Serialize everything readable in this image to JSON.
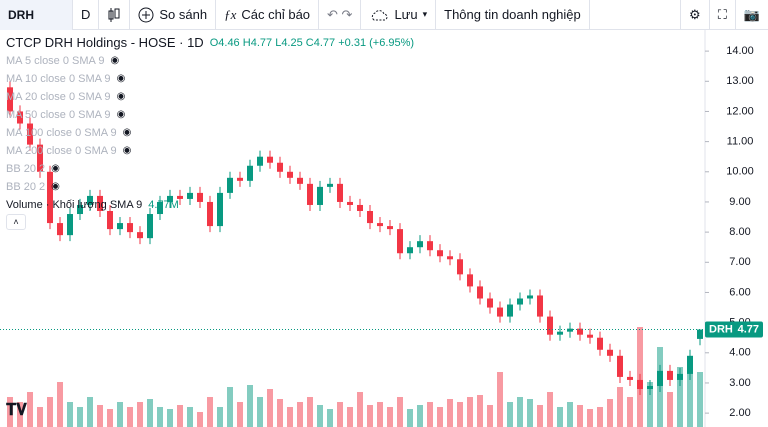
{
  "toolbar": {
    "symbol": "DRH",
    "interval": "D",
    "compare": "So sánh",
    "indicators": "Các chỉ báo",
    "save": "Lưu",
    "company": "Thông tin doanh nghiệp"
  },
  "legend": {
    "title": "CTCP DRH Holdings - HOSE · 1D",
    "o": "O",
    "h": "H",
    "l": "L",
    "c": "C",
    "change": "+0.31 (+6.95%)",
    "studies": [
      "MA 5 close 0 SMA 9",
      "MA 10 close 0 SMA 9",
      "MA 20 close 0 SMA 9",
      "MA 50 close 0 SMA 9",
      "MA 100 close 0 SMA 9",
      "MA 200 close 0 SMA 9",
      "BB 20 2",
      "BB 20 2"
    ],
    "volume": "Volume · Khối lượng SMA 9",
    "volume_value": "4.77M"
  },
  "chart_data": {
    "type": "candlestick",
    "ticker": "DRH",
    "up_color": "#089981",
    "down_color": "#f23645",
    "open": [
      12.8,
      12.0,
      11.6,
      10.9,
      10.0,
      8.3,
      7.9,
      8.6,
      8.9,
      9.2,
      8.7,
      8.1,
      8.3,
      8.0,
      7.8,
      8.6,
      9.0,
      9.2,
      9.1,
      9.3,
      9.0,
      8.2,
      9.3,
      9.8,
      9.7,
      10.2,
      10.5,
      10.3,
      10.0,
      9.8,
      9.6,
      8.9,
      9.5,
      9.6,
      9.0,
      8.9,
      8.7,
      8.3,
      8.2,
      8.1,
      7.3,
      7.5,
      7.7,
      7.4,
      7.2,
      7.1,
      6.6,
      6.2,
      5.8,
      5.5,
      5.2,
      5.6,
      5.8,
      5.9,
      5.2,
      4.6,
      4.7,
      4.8,
      4.6,
      4.5,
      4.1,
      3.9,
      3.2,
      3.1,
      2.8,
      2.9,
      3.4,
      3.1,
      3.3,
      4.46
    ],
    "high": [
      13.0,
      12.2,
      11.8,
      11.1,
      10.2,
      8.5,
      8.8,
      9.1,
      9.4,
      9.4,
      8.9,
      8.5,
      8.5,
      8.2,
      8.8,
      9.2,
      9.4,
      9.4,
      9.5,
      9.5,
      9.2,
      9.5,
      10.0,
      10.0,
      10.4,
      10.7,
      10.7,
      10.5,
      10.2,
      10.0,
      9.8,
      9.7,
      9.8,
      9.8,
      9.2,
      9.1,
      8.9,
      8.5,
      8.4,
      8.3,
      7.7,
      7.9,
      7.9,
      7.6,
      7.4,
      7.3,
      6.8,
      6.4,
      6.0,
      5.7,
      5.8,
      6.0,
      6.1,
      6.1,
      5.4,
      4.9,
      5.0,
      5.0,
      4.8,
      4.7,
      4.3,
      4.1,
      3.4,
      3.3,
      3.1,
      3.6,
      3.6,
      3.5,
      4.1,
      4.77
    ],
    "low": [
      11.8,
      11.4,
      10.7,
      9.8,
      8.1,
      7.7,
      7.7,
      8.4,
      8.7,
      8.5,
      7.9,
      7.9,
      7.8,
      7.6,
      7.6,
      8.4,
      8.8,
      8.9,
      8.9,
      8.8,
      8.0,
      8.0,
      9.1,
      9.5,
      9.5,
      10.0,
      10.1,
      9.8,
      9.6,
      9.4,
      8.7,
      8.7,
      9.3,
      8.8,
      8.7,
      8.5,
      8.1,
      8.0,
      7.9,
      7.1,
      7.1,
      7.3,
      7.2,
      7.0,
      6.9,
      6.4,
      6.0,
      5.6,
      5.3,
      5.0,
      5.0,
      5.4,
      5.6,
      5.0,
      4.4,
      4.4,
      4.5,
      4.4,
      4.3,
      3.9,
      3.7,
      3.0,
      2.9,
      2.6,
      2.6,
      2.7,
      2.9,
      2.9,
      3.1,
      4.25
    ],
    "close": [
      12.0,
      11.6,
      10.9,
      10.0,
      8.3,
      7.9,
      8.6,
      8.9,
      9.2,
      8.7,
      8.1,
      8.3,
      8.0,
      7.8,
      8.6,
      9.0,
      9.2,
      9.1,
      9.3,
      9.0,
      8.2,
      9.3,
      9.8,
      9.7,
      10.2,
      10.5,
      10.3,
      10.0,
      9.8,
      9.6,
      8.9,
      9.5,
      9.6,
      9.0,
      8.9,
      8.7,
      8.3,
      8.2,
      8.1,
      7.3,
      7.5,
      7.7,
      7.4,
      7.2,
      7.1,
      6.6,
      6.2,
      5.8,
      5.5,
      5.2,
      5.6,
      5.8,
      5.9,
      5.2,
      4.6,
      4.7,
      4.8,
      4.6,
      4.5,
      4.1,
      3.9,
      3.2,
      3.1,
      2.8,
      2.9,
      3.4,
      3.1,
      3.3,
      3.9,
      4.77
    ],
    "volume": [
      30,
      25,
      35,
      20,
      30,
      45,
      25,
      20,
      30,
      22,
      18,
      25,
      20,
      25,
      28,
      20,
      18,
      22,
      20,
      15,
      30,
      20,
      40,
      25,
      42,
      30,
      38,
      28,
      20,
      25,
      30,
      22,
      18,
      25,
      20,
      35,
      22,
      25,
      20,
      30,
      18,
      22,
      25,
      20,
      28,
      25,
      30,
      32,
      22,
      55,
      25,
      30,
      28,
      22,
      35,
      20,
      25,
      22,
      18,
      20,
      28,
      40,
      30,
      100,
      45,
      80,
      35,
      60,
      55,
      55
    ],
    "ylim": [
      1.54,
      14.7
    ],
    "yticks": [
      {
        "value": 2,
        "label": "2.00"
      },
      {
        "value": 3,
        "label": "3.00"
      },
      {
        "value": 4,
        "label": "4.00"
      },
      {
        "value": 5,
        "label": "5.00"
      },
      {
        "value": 6,
        "label": "6.00"
      },
      {
        "value": 7,
        "label": "7.00"
      },
      {
        "value": 8,
        "label": "8.00"
      },
      {
        "value": 9,
        "label": "9.00"
      },
      {
        "value": 10,
        "label": "10.00"
      },
      {
        "value": 11,
        "label": "11.00"
      },
      {
        "value": 12,
        "label": "12.00"
      },
      {
        "value": 13,
        "label": "13.00"
      },
      {
        "value": 14,
        "label": "14.00"
      }
    ]
  }
}
